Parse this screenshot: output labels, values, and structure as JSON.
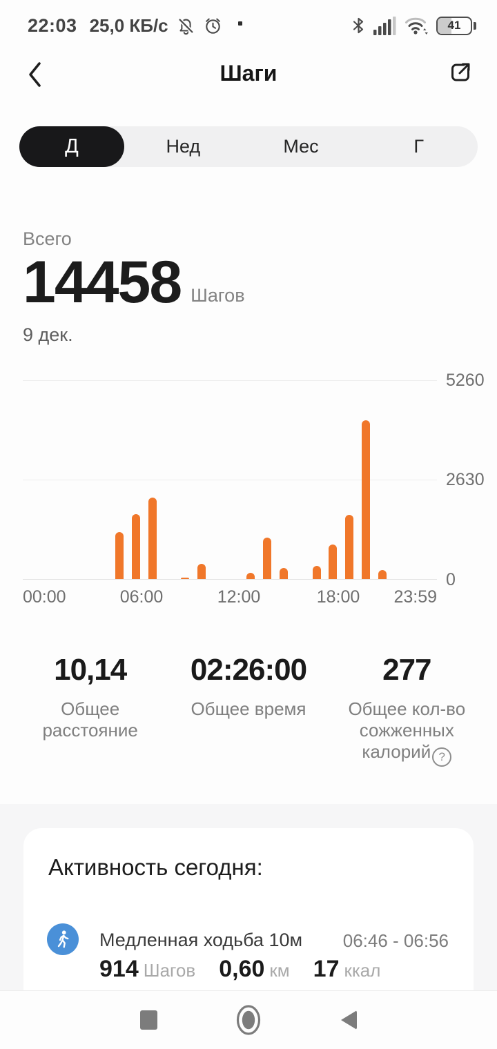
{
  "status_bar": {
    "time": "22:03",
    "net_speed": "25,0 КБ/с",
    "battery_percent": "41"
  },
  "header": {
    "title": "Шаги"
  },
  "tabs": [
    {
      "label": "Д",
      "selected": true
    },
    {
      "label": "Нед",
      "selected": false
    },
    {
      "label": "Мес",
      "selected": false
    },
    {
      "label": "Г",
      "selected": false
    }
  ],
  "summary": {
    "total_label": "Всего",
    "value": "14458",
    "unit": "Шагов",
    "date": "9 дек."
  },
  "chart_data": {
    "type": "bar",
    "x_hours": [
      0,
      1,
      2,
      3,
      4,
      5,
      6,
      7,
      8,
      9,
      10,
      11,
      12,
      13,
      14,
      15,
      16,
      17,
      18,
      19,
      20,
      21,
      22,
      23
    ],
    "values": [
      0,
      0,
      0,
      0,
      0,
      1235,
      1705,
      2145,
      0,
      28,
      400,
      0,
      0,
      170,
      1095,
      290,
      0,
      350,
      920,
      1685,
      4190,
      245,
      0,
      0
    ],
    "unit": "Шагов",
    "xticks": [
      "00:00",
      "06:00",
      "12:00",
      "18:00",
      "23:59"
    ],
    "yticks": [
      "0",
      "2630",
      "5260"
    ],
    "ylim": [
      0,
      5260
    ],
    "bar_color": "#f0772a",
    "grid": "horizontal",
    "ylabels_position": "right"
  },
  "stats": [
    {
      "value": "10,14",
      "label": "Общее расстояние"
    },
    {
      "value": "02:26:00",
      "label": "Общее время"
    },
    {
      "value": "277",
      "label": "Общее кол-во сожженных калорий",
      "help": "?"
    }
  ],
  "activity": {
    "title": "Активность сегодня:",
    "items": [
      {
        "name": "Медленная ходьба 10м",
        "time_range": "06:46 - 06:56",
        "steps": "914",
        "steps_unit": "Шагов",
        "distance": "0,60",
        "distance_unit": "км",
        "calories": "17",
        "calories_unit": "ккал"
      }
    ]
  }
}
